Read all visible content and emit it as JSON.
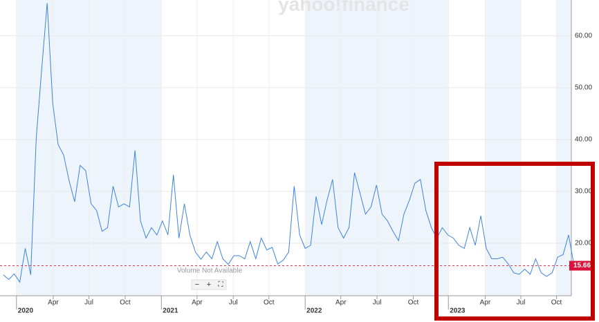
{
  "chart_data": {
    "type": "line",
    "watermark": "yahoo!finance",
    "note": "Volume Not Available",
    "zoom_controls": [
      "−",
      "+",
      "⛶"
    ],
    "series": [
      {
        "color": "#3c83e0",
        "values": [
          13.9,
          13,
          14.1,
          12.5,
          19,
          13.9,
          40.3,
          53.6,
          66.3,
          47,
          39,
          37,
          32,
          28,
          35,
          34,
          27.6,
          26.3,
          22.3,
          23,
          31,
          27,
          27.6,
          27,
          37.9,
          24.3,
          21,
          23,
          21.6,
          24.3,
          21.6,
          33.2,
          21,
          27.6,
          21.6,
          18.3,
          16.9,
          18.3,
          17,
          20.3,
          17,
          15.9,
          17.6,
          17.6,
          17,
          20.3,
          17,
          21,
          18.7,
          19.2,
          16,
          16.7,
          18.3,
          31,
          21.6,
          19,
          19.6,
          29,
          23.6,
          28.3,
          32.3,
          23,
          21,
          23,
          33.6,
          29.6,
          25.6,
          27,
          31.2,
          25.6,
          24.3,
          22.3,
          20.5,
          25.6,
          28.3,
          31.6,
          32.3,
          26.3,
          23,
          21,
          23,
          21.6,
          21,
          19.6,
          19,
          23,
          19.6,
          25.3,
          19,
          17,
          17,
          17.3,
          16,
          14.3,
          14,
          15,
          14,
          17,
          14.3,
          13.6,
          14.3,
          17.3,
          17.8,
          21.6,
          15.66
        ]
      }
    ],
    "last_price": 15.66,
    "xlim": [
      -0.6,
      103.5
    ],
    "xticks": [
      {
        "value": 2.4,
        "label": "2020"
      },
      {
        "value": 9.1,
        "label": "Apr"
      },
      {
        "value": 15.6,
        "label": "Jul"
      },
      {
        "value": 22.2,
        "label": "Oct"
      },
      {
        "value": 28.8,
        "label": "2021"
      },
      {
        "value": 35.3,
        "label": "Apr"
      },
      {
        "value": 41.9,
        "label": "Jul"
      },
      {
        "value": 48.4,
        "label": "Oct"
      },
      {
        "value": 55,
        "label": "2022"
      },
      {
        "value": 61.5,
        "label": "Apr"
      },
      {
        "value": 68.1,
        "label": "Jul"
      },
      {
        "value": 74.7,
        "label": "Oct"
      },
      {
        "value": 81.1,
        "label": "2023"
      },
      {
        "value": 87.8,
        "label": "Apr"
      },
      {
        "value": 94.3,
        "label": "Jul"
      },
      {
        "value": 100.8,
        "label": "Oct"
      }
    ],
    "ylim": [
      9.87,
      66.9
    ],
    "yticks": [
      {
        "value": 20,
        "label": "20.00"
      },
      {
        "value": 30,
        "label": "30.00"
      },
      {
        "value": 40,
        "label": "40.00"
      },
      {
        "value": 50,
        "label": "50.00"
      },
      {
        "value": 60,
        "label": "60.00"
      }
    ],
    "grid": true
  }
}
